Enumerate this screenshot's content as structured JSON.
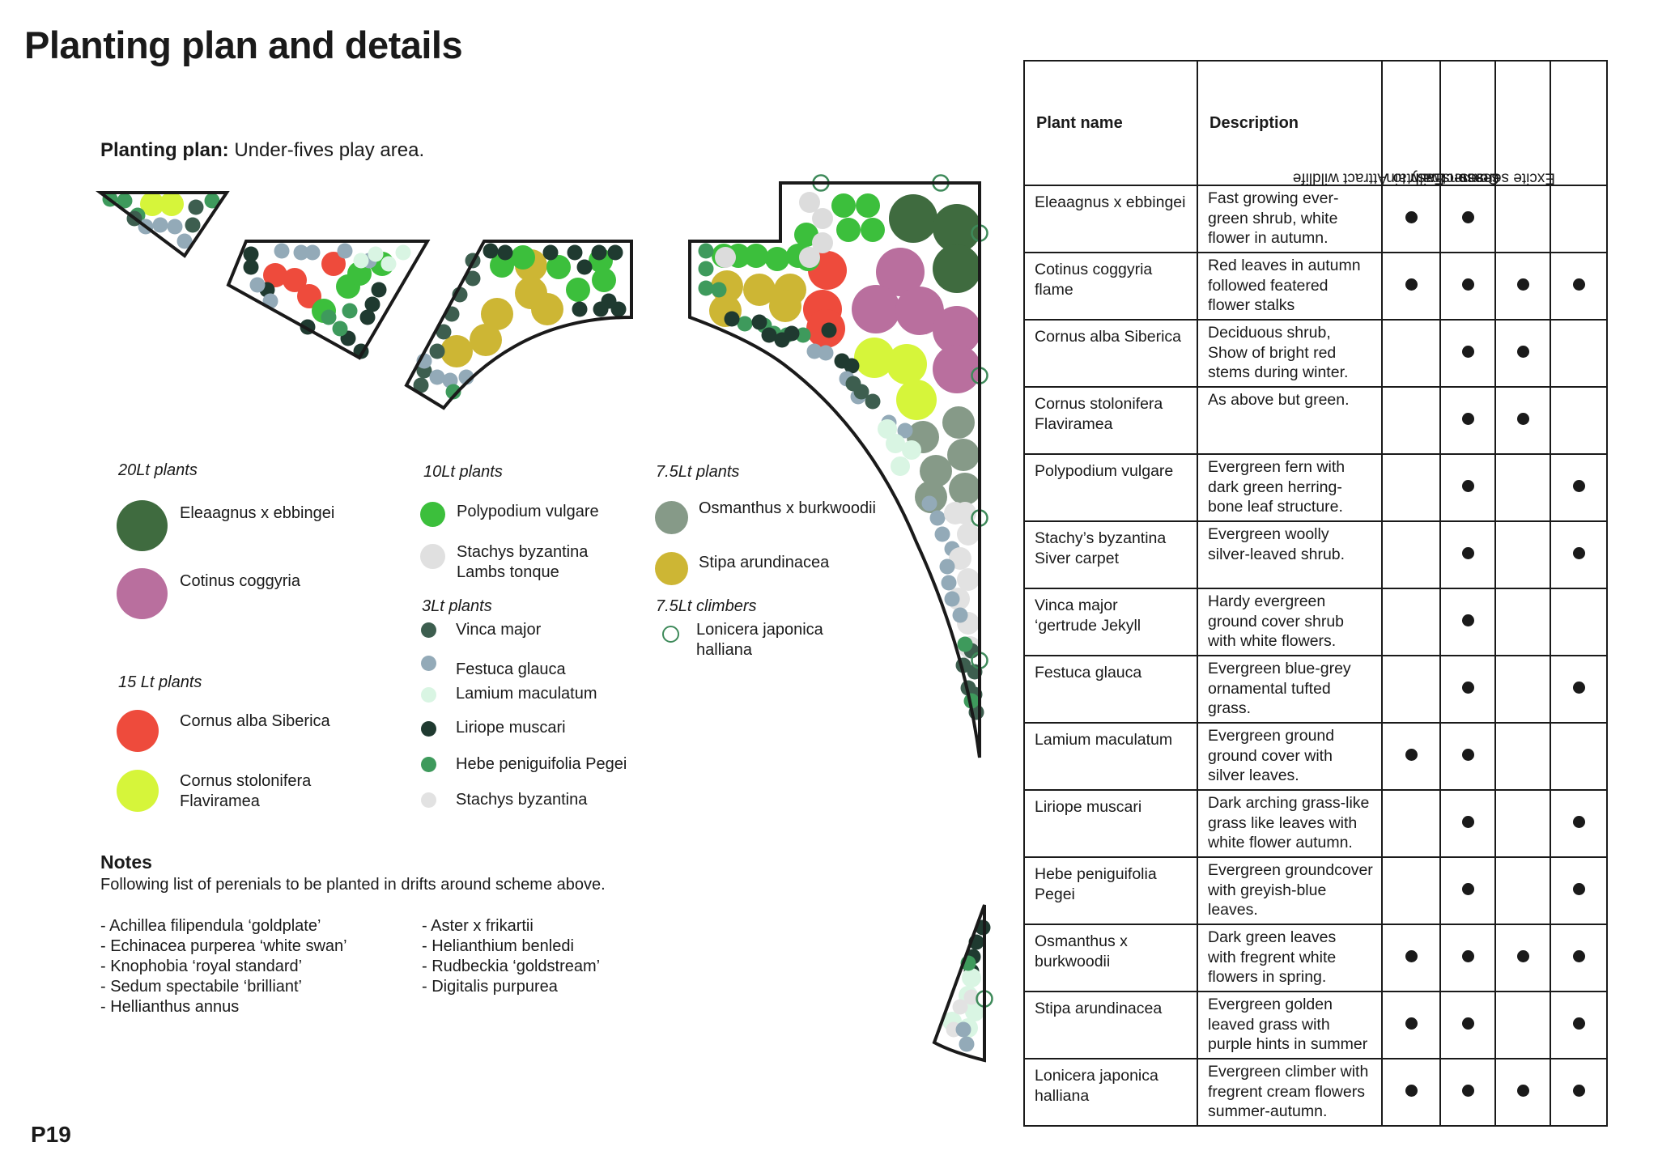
{
  "page": {
    "title": "Planting plan and details",
    "page_number": "P19"
  },
  "plan": {
    "heading_bold": "Planting plan:",
    "heading_rest": " Under-fives play area."
  },
  "colors": {
    "dark_green": "#3f6b3f",
    "pink": "#b96f9e",
    "red": "#ee4b3c",
    "lime": "#d6f53a",
    "bright_green": "#3cbf3c",
    "silver": "#dcdcdc",
    "dark_teal": "#3d5e4f",
    "blue_grey": "#93aab8",
    "mint": "#d9f5e3",
    "near_black": "#1f3a30",
    "mid_green": "#3e9a5c",
    "light_grey": "#e2e2e2",
    "sage": "#869a88",
    "olive": "#cdb634"
  },
  "legend": {
    "l20": {
      "label": "20Lt plants",
      "items": [
        {
          "name": "Eleaagnus x ebbingei",
          "color": "#3f6b3f"
        },
        {
          "name": "Cotinus coggyria",
          "color": "#b96f9e"
        }
      ]
    },
    "l15": {
      "label": "15 Lt plants",
      "items": [
        {
          "name": "Cornus alba Siberica",
          "color": "#ee4b3c"
        },
        {
          "name": "Cornus stolonifera",
          "name2": "Flaviramea",
          "color": "#d6f53a"
        }
      ]
    },
    "l10": {
      "label": "10Lt plants",
      "items": [
        {
          "name": "Polypodium vulgare",
          "color": "#3cbf3c"
        },
        {
          "name": "Stachys byzantina",
          "name2": "Lambs tonque",
          "color": "#e0e0e0"
        }
      ]
    },
    "l3": {
      "label": "3Lt plants",
      "items": [
        {
          "name": "Vinca major",
          "color": "#3d5e4f"
        },
        {
          "name": "Festuca glauca",
          "color": "#93aab8"
        },
        {
          "name": "Lamium maculatum",
          "color": "#d9f5e3"
        },
        {
          "name": "Liriope muscari",
          "color": "#1f3a30"
        },
        {
          "name": "Hebe peniguifolia Pegei",
          "color": "#3e9a5c"
        },
        {
          "name": "Stachys byzantina",
          "color": "#e2e2e2"
        }
      ]
    },
    "l75": {
      "label": "7.5Lt plants",
      "items": [
        {
          "name": "Osmanthus x burkwoodii",
          "color": "#869a88"
        },
        {
          "name": "Stipa arundinacea",
          "color": "#cdb634"
        }
      ]
    },
    "l75c": {
      "label": "7.5Lt climbers",
      "items": [
        {
          "name": "Lonicera japonica",
          "name2": "halliana",
          "color": "#3e8a5a"
        }
      ]
    }
  },
  "notes": {
    "title": "Notes",
    "intro": "Following list of perenials to be planted in drifts around scheme above.",
    "col1": [
      "- Achillea filipendula ‘goldplate’",
      "- Echinacea purperea ‘white swan’",
      "- Knophobia ‘royal standard’",
      "- Sedum spectabile ‘brilliant’",
      "- Hellianthus annus"
    ],
    "col2": [
      "- Aster x frikartii",
      "- Helianthium benledi",
      "- Rudbeckia ‘goldstream’",
      "- Digitalis purpurea"
    ]
  },
  "table": {
    "headers": {
      "plant_name": "Plant name",
      "description": "Description",
      "wildlife": "Attract wildlife",
      "maintain_1": "Easy to",
      "maintain_2": "maintain",
      "seasons_1": "Connect with",
      "seasons_2": "seasons",
      "senses": "Excite senses"
    },
    "rows": [
      {
        "name": [
          "Eleaagnus x ebbingei"
        ],
        "desc": [
          "Fast growing ever-",
          "green shrub, white",
          "flower in autumn."
        ],
        "marks": [
          true,
          true,
          false,
          false
        ]
      },
      {
        "name": [
          "Cotinus coggyria",
          "flame"
        ],
        "desc": [
          "Red leaves in autumn",
          "followed featered",
          "flower stalks"
        ],
        "marks": [
          true,
          true,
          true,
          true
        ]
      },
      {
        "name": [
          "Cornus alba Siberica"
        ],
        "desc": [
          "Deciduous shrub,",
          "Show of bright red",
          "stems during winter."
        ],
        "marks": [
          false,
          true,
          true,
          false
        ]
      },
      {
        "name": [
          "Cornus stolonifera",
          "Flaviramea"
        ],
        "desc": [
          "As above but green."
        ],
        "marks": [
          false,
          true,
          true,
          false
        ]
      },
      {
        "name": [
          "Polypodium vulgare"
        ],
        "desc": [
          "Evergreen fern with",
          "dark green herring-",
          "bone leaf structure."
        ],
        "marks": [
          false,
          true,
          false,
          true
        ]
      },
      {
        "name": [
          "Stachy’s byzantina",
          "Siver carpet"
        ],
        "desc": [
          "Evergreen woolly",
          "silver-leaved shrub."
        ],
        "marks": [
          false,
          true,
          false,
          true
        ]
      },
      {
        "name": [
          "Vinca major",
          "‘gertrude Jekyll"
        ],
        "desc": [
          "Hardy evergreen",
          "ground cover shrub",
          "with white flowers."
        ],
        "marks": [
          false,
          true,
          false,
          false
        ]
      },
      {
        "name": [
          "Festuca glauca"
        ],
        "desc": [
          "Evergreen blue-grey",
          "ornamental tufted",
          "grass."
        ],
        "marks": [
          false,
          true,
          false,
          true
        ]
      },
      {
        "name": [
          "Lamium maculatum"
        ],
        "desc": [
          "Evergreen ground",
          "ground cover with",
          "silver leaves."
        ],
        "marks": [
          true,
          true,
          false,
          false
        ]
      },
      {
        "name": [
          "Liriope muscari"
        ],
        "desc": [
          "Dark arching grass-like",
          "grass like leaves with",
          "white flower autumn."
        ],
        "marks": [
          false,
          true,
          false,
          true
        ]
      },
      {
        "name": [
          "Hebe peniguifolia",
          "Pegei"
        ],
        "desc": [
          "Evergreen groundcover",
          "with greyish-blue",
          "leaves."
        ],
        "marks": [
          false,
          true,
          false,
          true
        ]
      },
      {
        "name": [
          "Osmanthus x",
          "burkwoodii"
        ],
        "desc": [
          "Dark green leaves",
          "with fregrent white",
          "flowers in spring."
        ],
        "marks": [
          true,
          true,
          true,
          true
        ]
      },
      {
        "name": [
          "Stipa arundinacea"
        ],
        "desc": [
          "Evergreen golden",
          "leaved grass with",
          "purple hints in summer"
        ],
        "marks": [
          true,
          true,
          false,
          true
        ]
      },
      {
        "name": [
          "Lonicera japonica",
          "halliana"
        ],
        "desc": [
          "Evergreen climber with",
          "fregrent cream flowers",
          "summer-autumn."
        ],
        "marks": [
          true,
          true,
          true,
          true
        ]
      }
    ]
  }
}
